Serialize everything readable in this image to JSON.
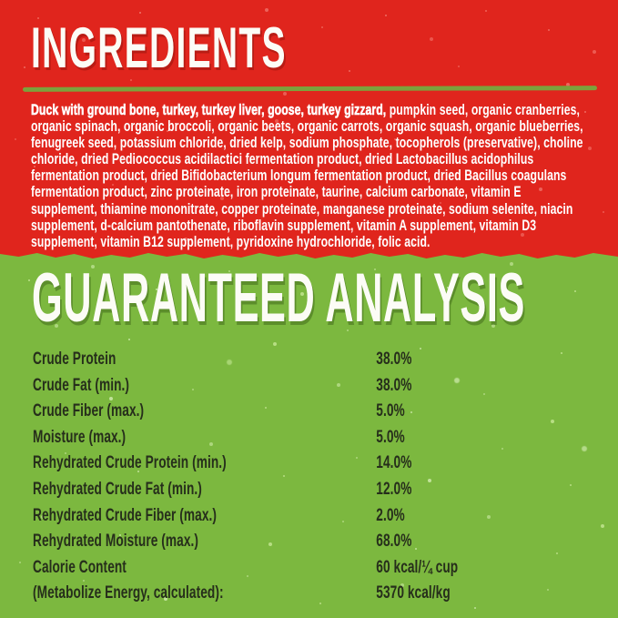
{
  "ingredients": {
    "title": "INGREDIENTS",
    "lead_bold": "Duck with ground bone, turkey, turkey liver, goose, turkey gizzard,",
    "body": " pumpkin seed, organic cranberries, organic spinach, organic broccoli, organic beets, organic carrots, organic squash, organic blueberries, fenugreek seed, potassium chloride, dried kelp, sodium phosphate, tocopherols (preservative), choline chloride, dried Pediococcus acidilactici fermentation product, dried Lactobacillus acidophilus fermentation product, dried Bifidobacterium longum fermentation product, dried Bacillus coagulans fermentation product, zinc proteinate, iron proteinate, taurine, calcium carbonate, vitamin E supplement, thiamine mononitrate, copper proteinate, manganese proteinate, sodium selenite, niacin supplement, d-calcium pantothenate, riboflavin supplement, vitamin A supplement, vitamin D3 supplement, vitamin B12 supplement, pyridoxine hydrochloride, folic acid."
  },
  "analysis": {
    "title": "GUARANTEED ANALYSIS",
    "rows": [
      {
        "label": "Crude Protein",
        "value": "38.0%"
      },
      {
        "label": "Crude Fat (min.)",
        "value": "38.0%"
      },
      {
        "label": "Crude Fiber (max.)",
        "value": "5.0%"
      },
      {
        "label": "Moisture (max.)",
        "value": "5.0%"
      },
      {
        "label": "Rehydrated Crude Protein (min.)",
        "value": "14.0%"
      },
      {
        "label": "Rehydrated Crude Fat (min.)",
        "value": "12.0%"
      },
      {
        "label": "Rehydrated Crude Fiber (max.)",
        "value": "2.0%"
      },
      {
        "label": "Rehydrated Moisture (max.)",
        "value": "68.0%"
      },
      {
        "label": "Calorie Content",
        "value": "60 kcal/¼ cup"
      },
      {
        "label": "(Metabolize Energy, calculated):",
        "value": "5370 kcal/kg"
      }
    ]
  },
  "colors": {
    "red_bg": "#e0251d",
    "green_bg": "#7cb83f",
    "divider_green": "#7ca23c",
    "heading_text": "#fcfcf6",
    "body_text": "#ffffff",
    "analysis_text": "#262e1b"
  }
}
